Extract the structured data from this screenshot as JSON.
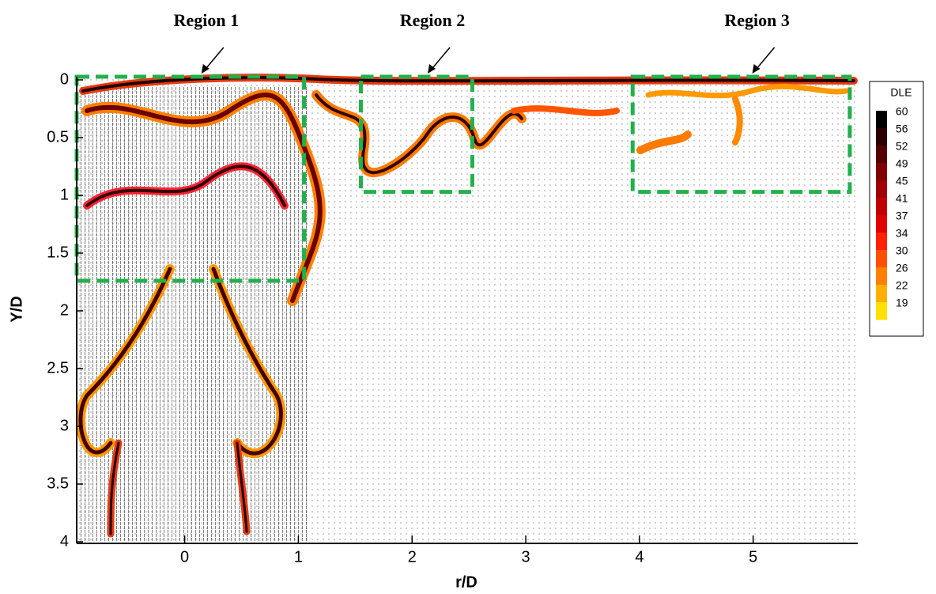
{
  "chart_data": {
    "type": "contour",
    "xlabel": "r/D",
    "ylabel": "Y/D",
    "xlim": [
      -0.95,
      5.92
    ],
    "ylim": [
      0,
      4
    ],
    "y_inverted": true,
    "xticks": [
      0,
      1,
      2,
      3,
      4,
      5
    ],
    "yticks": [
      0,
      0.5,
      1,
      1.5,
      2,
      2.5,
      3,
      3.5,
      4
    ],
    "colorbar": {
      "title": "DLE",
      "levels": [
        60,
        56,
        52,
        49,
        45,
        41,
        37,
        34,
        30,
        26,
        22,
        19
      ]
    },
    "region_color": "#22b04b",
    "regions": [
      {
        "label": "Region 1",
        "x": [
          -0.95,
          1.05
        ],
        "y": [
          0,
          1.74
        ]
      },
      {
        "label": "Region 2",
        "x": [
          1.55,
          2.53
        ],
        "y": [
          0,
          0.97
        ]
      },
      {
        "label": "Region 3",
        "x": [
          3.94,
          5.85
        ],
        "y": [
          0,
          0.97
        ]
      }
    ]
  }
}
